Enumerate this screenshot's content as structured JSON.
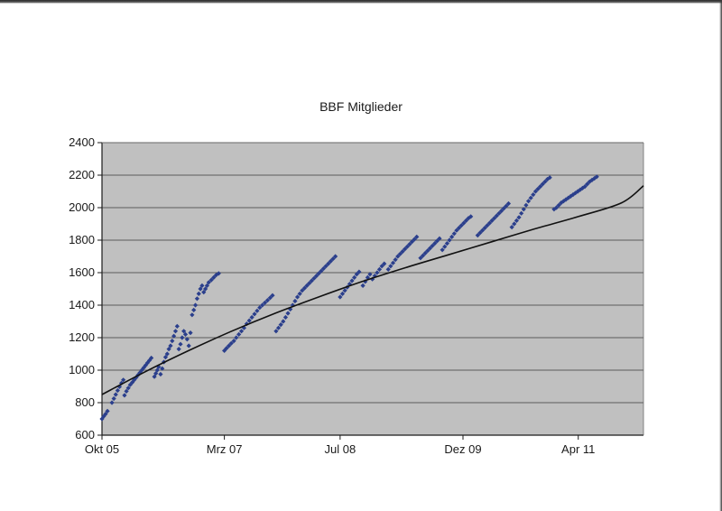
{
  "chart_data": {
    "type": "scatter",
    "title": "BBF Mitglieder",
    "xlabel": "",
    "ylabel": "",
    "x_tick_labels": [
      {
        "date": "2005-10-01",
        "label": "Okt 05"
      },
      {
        "date": "2007-03-01",
        "label": "Mrz 07"
      },
      {
        "date": "2008-07-01",
        "label": "Jul 08"
      },
      {
        "date": "2009-12-01",
        "label": "Dez 09"
      },
      {
        "date": "2011-04-01",
        "label": "Apr 11"
      }
    ],
    "xlim": [
      "2005-10-01",
      "2012-01-01"
    ],
    "ylim": [
      600,
      2400
    ],
    "yticks": [
      600,
      800,
      1000,
      1200,
      1400,
      1600,
      1800,
      2000,
      2200,
      2400
    ],
    "grid": "horizontal",
    "plot_background": "#c0c0c0",
    "series": [
      {
        "kind": "points",
        "color": "#2b3f8c",
        "marker": "diamond",
        "points": [
          [
            "2005-10-01",
            700
          ],
          [
            "2005-10-08",
            715
          ],
          [
            "2005-10-16",
            730
          ],
          [
            "2005-10-24",
            748
          ],
          [
            "2005-11-12",
            800
          ],
          [
            "2005-11-20",
            825
          ],
          [
            "2005-11-28",
            850
          ],
          [
            "2005-12-06",
            875
          ],
          [
            "2005-12-14",
            898
          ],
          [
            "2005-12-22",
            920
          ],
          [
            "2005-12-30",
            940
          ],
          [
            "2006-01-04",
            845
          ],
          [
            "2006-01-12",
            870
          ],
          [
            "2006-01-20",
            890
          ],
          [
            "2006-01-28",
            910
          ],
          [
            "2006-02-06",
            925
          ],
          [
            "2006-02-14",
            940
          ],
          [
            "2006-02-22",
            955
          ],
          [
            "2006-03-02",
            970
          ],
          [
            "2006-03-10",
            985
          ],
          [
            "2006-03-18",
            1000
          ],
          [
            "2006-03-26",
            1015
          ],
          [
            "2006-04-03",
            1030
          ],
          [
            "2006-04-11",
            1045
          ],
          [
            "2006-04-19",
            1060
          ],
          [
            "2006-04-27",
            1075
          ],
          [
            "2006-05-10",
            960
          ],
          [
            "2006-05-16",
            980
          ],
          [
            "2006-05-22",
            1000
          ],
          [
            "2006-05-28",
            1020
          ],
          [
            "2006-06-05",
            975
          ],
          [
            "2006-06-12",
            1010
          ],
          [
            "2006-06-19",
            1050
          ],
          [
            "2006-06-26",
            1080
          ],
          [
            "2006-07-03",
            1100
          ],
          [
            "2006-07-10",
            1130
          ],
          [
            "2006-07-17",
            1150
          ],
          [
            "2006-07-24",
            1180
          ],
          [
            "2006-07-31",
            1210
          ],
          [
            "2006-08-07",
            1240
          ],
          [
            "2006-08-14",
            1270
          ],
          [
            "2006-08-21",
            1130
          ],
          [
            "2006-08-28",
            1160
          ],
          [
            "2006-09-04",
            1200
          ],
          [
            "2006-09-11",
            1240
          ],
          [
            "2006-09-18",
            1220
          ],
          [
            "2006-09-25",
            1190
          ],
          [
            "2006-10-02",
            1150
          ],
          [
            "2006-10-09",
            1230
          ],
          [
            "2006-10-16",
            1340
          ],
          [
            "2006-10-23",
            1370
          ],
          [
            "2006-10-30",
            1400
          ],
          [
            "2006-11-06",
            1440
          ],
          [
            "2006-11-13",
            1470
          ],
          [
            "2006-11-20",
            1500
          ],
          [
            "2006-11-27",
            1520
          ],
          [
            "2006-12-04",
            1480
          ],
          [
            "2006-12-11",
            1500
          ],
          [
            "2006-12-18",
            1520
          ],
          [
            "2006-12-25",
            1540
          ],
          [
            "2007-01-05",
            1555
          ],
          [
            "2007-01-15",
            1570
          ],
          [
            "2007-01-25",
            1585
          ],
          [
            "2007-02-05",
            1595
          ],
          [
            "2007-03-01",
            1120
          ],
          [
            "2007-03-10",
            1135
          ],
          [
            "2007-03-20",
            1150
          ],
          [
            "2007-03-30",
            1165
          ],
          [
            "2007-04-10",
            1180
          ],
          [
            "2007-04-20",
            1200
          ],
          [
            "2007-05-01",
            1220
          ],
          [
            "2007-05-12",
            1240
          ],
          [
            "2007-05-23",
            1260
          ],
          [
            "2007-06-03",
            1285
          ],
          [
            "2007-06-14",
            1305
          ],
          [
            "2007-06-25",
            1325
          ],
          [
            "2007-07-06",
            1345
          ],
          [
            "2007-07-17",
            1365
          ],
          [
            "2007-07-28",
            1385
          ],
          [
            "2007-08-08",
            1400
          ],
          [
            "2007-08-19",
            1415
          ],
          [
            "2007-08-30",
            1430
          ],
          [
            "2007-09-10",
            1445
          ],
          [
            "2007-09-20",
            1460
          ],
          [
            "2007-10-05",
            1240
          ],
          [
            "2007-10-15",
            1260
          ],
          [
            "2007-10-25",
            1280
          ],
          [
            "2007-11-04",
            1300
          ],
          [
            "2007-11-14",
            1325
          ],
          [
            "2007-11-24",
            1350
          ],
          [
            "2007-12-04",
            1375
          ],
          [
            "2007-12-14",
            1400
          ],
          [
            "2007-12-24",
            1425
          ],
          [
            "2008-01-03",
            1450
          ],
          [
            "2008-01-13",
            1470
          ],
          [
            "2008-01-23",
            1490
          ],
          [
            "2008-02-02",
            1505
          ],
          [
            "2008-02-12",
            1520
          ],
          [
            "2008-02-22",
            1535
          ],
          [
            "2008-03-03",
            1550
          ],
          [
            "2008-03-13",
            1565
          ],
          [
            "2008-03-23",
            1580
          ],
          [
            "2008-04-02",
            1595
          ],
          [
            "2008-04-12",
            1610
          ],
          [
            "2008-04-22",
            1625
          ],
          [
            "2008-05-02",
            1640
          ],
          [
            "2008-05-12",
            1655
          ],
          [
            "2008-05-22",
            1670
          ],
          [
            "2008-06-01",
            1685
          ],
          [
            "2008-06-11",
            1700
          ],
          [
            "2008-07-01",
            1450
          ],
          [
            "2008-07-11",
            1470
          ],
          [
            "2008-07-21",
            1490
          ],
          [
            "2008-07-31",
            1510
          ],
          [
            "2008-08-10",
            1530
          ],
          [
            "2008-08-20",
            1550
          ],
          [
            "2008-08-30",
            1570
          ],
          [
            "2008-09-09",
            1590
          ],
          [
            "2008-09-19",
            1605
          ],
          [
            "2008-10-05",
            1520
          ],
          [
            "2008-10-15",
            1545
          ],
          [
            "2008-10-25",
            1570
          ],
          [
            "2008-11-04",
            1590
          ],
          [
            "2008-11-14",
            1560
          ],
          [
            "2008-11-24",
            1580
          ],
          [
            "2008-12-04",
            1600
          ],
          [
            "2008-12-14",
            1620
          ],
          [
            "2008-12-24",
            1640
          ],
          [
            "2009-01-03",
            1655
          ],
          [
            "2009-01-20",
            1620
          ],
          [
            "2009-01-30",
            1640
          ],
          [
            "2009-02-09",
            1660
          ],
          [
            "2009-02-19",
            1680
          ],
          [
            "2009-03-01",
            1700
          ],
          [
            "2009-03-11",
            1715
          ],
          [
            "2009-03-21",
            1730
          ],
          [
            "2009-03-31",
            1745
          ],
          [
            "2009-04-10",
            1760
          ],
          [
            "2009-04-20",
            1775
          ],
          [
            "2009-04-30",
            1790
          ],
          [
            "2009-05-10",
            1805
          ],
          [
            "2009-05-20",
            1820
          ],
          [
            "2009-06-05",
            1690
          ],
          [
            "2009-06-15",
            1705
          ],
          [
            "2009-06-25",
            1720
          ],
          [
            "2009-07-05",
            1735
          ],
          [
            "2009-07-15",
            1750
          ],
          [
            "2009-07-25",
            1765
          ],
          [
            "2009-08-04",
            1780
          ],
          [
            "2009-08-14",
            1795
          ],
          [
            "2009-08-24",
            1810
          ],
          [
            "2009-09-05",
            1740
          ],
          [
            "2009-09-15",
            1760
          ],
          [
            "2009-09-25",
            1780
          ],
          [
            "2009-10-05",
            1800
          ],
          [
            "2009-10-15",
            1820
          ],
          [
            "2009-10-25",
            1840
          ],
          [
            "2009-11-04",
            1860
          ],
          [
            "2009-11-14",
            1875
          ],
          [
            "2009-11-24",
            1890
          ],
          [
            "2009-12-04",
            1905
          ],
          [
            "2009-12-14",
            1920
          ],
          [
            "2009-12-24",
            1935
          ],
          [
            "2010-01-03",
            1945
          ],
          [
            "2010-02-01",
            1830
          ],
          [
            "2010-02-11",
            1845
          ],
          [
            "2010-02-21",
            1860
          ],
          [
            "2010-03-03",
            1875
          ],
          [
            "2010-03-13",
            1890
          ],
          [
            "2010-03-23",
            1905
          ],
          [
            "2010-04-02",
            1920
          ],
          [
            "2010-04-12",
            1935
          ],
          [
            "2010-04-22",
            1950
          ],
          [
            "2010-05-02",
            1965
          ],
          [
            "2010-05-12",
            1980
          ],
          [
            "2010-05-22",
            1995
          ],
          [
            "2010-06-01",
            2010
          ],
          [
            "2010-06-11",
            2025
          ],
          [
            "2010-06-25",
            1880
          ],
          [
            "2010-07-05",
            1900
          ],
          [
            "2010-07-15",
            1920
          ],
          [
            "2010-07-25",
            1940
          ],
          [
            "2010-08-04",
            1965
          ],
          [
            "2010-08-14",
            1990
          ],
          [
            "2010-08-24",
            2015
          ],
          [
            "2010-09-03",
            2040
          ],
          [
            "2010-09-13",
            2060
          ],
          [
            "2010-09-23",
            2080
          ],
          [
            "2010-10-03",
            2100
          ],
          [
            "2010-10-13",
            2115
          ],
          [
            "2010-10-23",
            2130
          ],
          [
            "2010-11-02",
            2145
          ],
          [
            "2010-11-12",
            2160
          ],
          [
            "2010-11-22",
            2175
          ],
          [
            "2010-12-02",
            2185
          ],
          [
            "2010-12-20",
            1990
          ],
          [
            "2010-12-30",
            2000
          ],
          [
            "2011-01-09",
            2015
          ],
          [
            "2011-01-19",
            2030
          ],
          [
            "2011-01-29",
            2040
          ],
          [
            "2011-02-08",
            2050
          ],
          [
            "2011-02-18",
            2060
          ],
          [
            "2011-02-28",
            2070
          ],
          [
            "2011-03-10",
            2080
          ],
          [
            "2011-03-20",
            2090
          ],
          [
            "2011-03-30",
            2100
          ],
          [
            "2011-04-09",
            2110
          ],
          [
            "2011-04-19",
            2120
          ],
          [
            "2011-04-29",
            2130
          ],
          [
            "2011-05-09",
            2145
          ],
          [
            "2011-05-19",
            2160
          ],
          [
            "2011-05-29",
            2170
          ],
          [
            "2011-06-08",
            2180
          ],
          [
            "2011-06-18",
            2190
          ]
        ]
      },
      {
        "kind": "trendline",
        "color": "#111111",
        "points": [
          [
            "2005-10-01",
            850
          ],
          [
            "2006-04-01",
            990
          ],
          [
            "2006-10-01",
            1120
          ],
          [
            "2007-04-01",
            1240
          ],
          [
            "2007-10-01",
            1350
          ],
          [
            "2008-04-01",
            1450
          ],
          [
            "2008-10-01",
            1545
          ],
          [
            "2009-04-01",
            1630
          ],
          [
            "2009-10-01",
            1710
          ],
          [
            "2010-04-01",
            1790
          ],
          [
            "2010-10-01",
            1870
          ],
          [
            "2011-04-01",
            1945
          ],
          [
            "2011-10-01",
            2030
          ],
          [
            "2012-01-01",
            2135
          ]
        ]
      }
    ]
  }
}
